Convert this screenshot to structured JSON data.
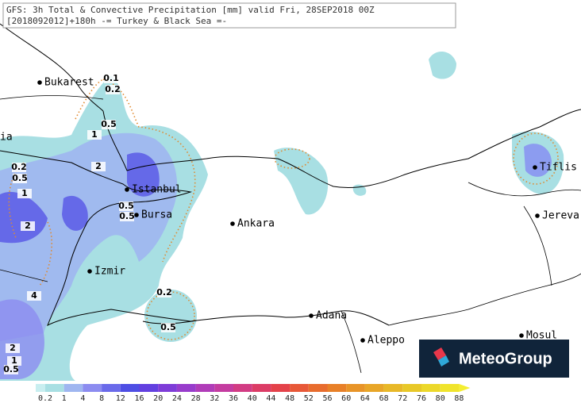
{
  "header": {
    "line1": "GFS: 3h Total & Convective Precipitation [mm] valid Fri, 28SEP2018 00Z",
    "line2": "[2018092012]+180h -= Turkey & Black Sea =-"
  },
  "cities": [
    "Bukarest",
    "ia",
    "Istanbul",
    "Bursa",
    "Ankara",
    "Izmir",
    "Adana",
    "Aleppo",
    "Tiflis",
    "Jereva",
    "Mosul"
  ],
  "contour_labels": [
    "0.1",
    "0.2",
    "0.5",
    "1",
    "0.2",
    "0.5",
    "2",
    "1",
    "0.5",
    "0.5",
    "2",
    "4",
    "0.2",
    "0.5",
    "2",
    "1",
    "0.5"
  ],
  "colorbar": {
    "labels": [
      0.2,
      1,
      4,
      8,
      12,
      16,
      20,
      24,
      28,
      32,
      36,
      40,
      44,
      48,
      52,
      56,
      60,
      64,
      68,
      72,
      76,
      80,
      88
    ],
    "colors": [
      "#c8eef0",
      "#a8dfe3",
      "#9fb6f0",
      "#8c8cf0",
      "#6a6aea",
      "#4e4ee4",
      "#6240e0",
      "#7e3cd8",
      "#983ccc",
      "#b03cb8",
      "#c43ca0",
      "#d23c84",
      "#dc3c66",
      "#e4424a",
      "#e85838",
      "#e86c2e",
      "#e88028",
      "#e89428",
      "#e8a628",
      "#e8b828",
      "#e8c828",
      "#ecd82a",
      "#f0e42c",
      "#f4ee30"
    ]
  },
  "logo": "MeteoGroup"
}
